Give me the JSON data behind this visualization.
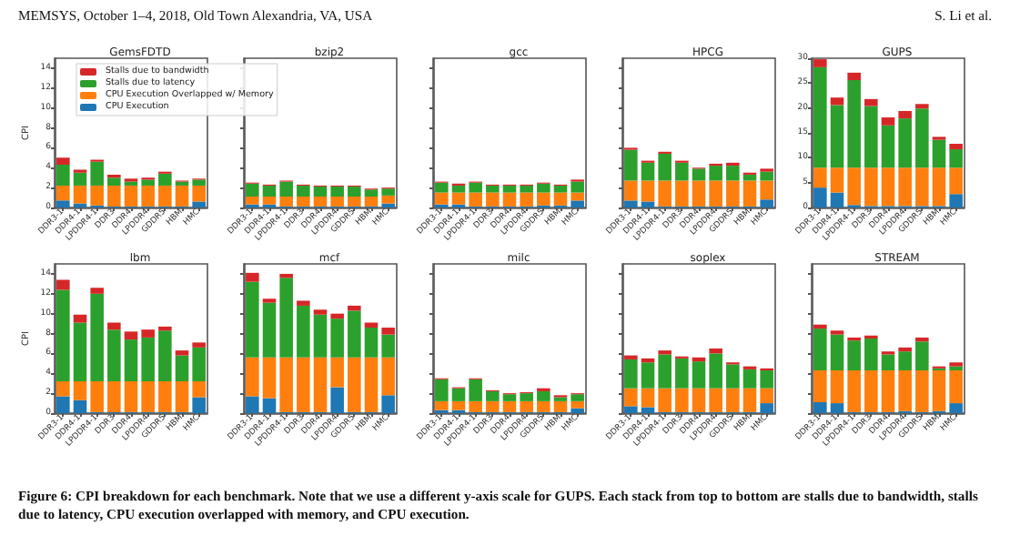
{
  "chart_data": [
    {
      "type": "bar",
      "title": "GemsFDTD",
      "ylabel": "CPI",
      "stacked": true,
      "legend": "top",
      "ylim": [
        0,
        15
      ],
      "yticks": [
        0,
        2,
        4,
        6,
        8,
        10,
        12,
        14
      ],
      "annotations": [
        "MEMSYS, October 1–4, 2018, Old Town Alexandria, VA, USA",
        "S. Li et al.",
        "Figure 6: CPI breakdown for each benchmark. Note that we use a different y-axis scale for GUPS. Each stack from top to bottom are stalls due to bandwidth, stalls due to latency, CPU execution overlapped with memory, and CPU execution."
      ],
      "categories": [
        "DDR3-1",
        "DDR4-1",
        "LPDDR4-1",
        "DDR3",
        "DDR4",
        "LPDDR4",
        "GDDR5",
        "HBM",
        "HMC"
      ],
      "series": [
        {
          "name": "CPU Execution",
          "color": "#1f77b4",
          "values": [
            0.7,
            0.4,
            0.2,
            0.1,
            0.1,
            0.1,
            0.1,
            0.1,
            0.6
          ]
        },
        {
          "name": "CPU Execution Overlapped w/ Memory",
          "color": "#ff7f0e",
          "values": [
            1.5,
            1.8,
            2.0,
            2.1,
            2.1,
            2.1,
            2.1,
            2.1,
            1.6
          ]
        },
        {
          "name": "Stalls due to latency",
          "color": "#2ca02c",
          "values": [
            2.1,
            1.3,
            2.4,
            0.8,
            0.4,
            0.6,
            1.2,
            0.4,
            0.6
          ]
        },
        {
          "name": "Stalls due to bandwidth",
          "color": "#d62728",
          "values": [
            0.7,
            0.3,
            0.2,
            0.3,
            0.3,
            0.2,
            0.2,
            0.1,
            0.1
          ]
        }
      ]
    },
    {
      "type": "bar",
      "title": "bzip2",
      "stacked": true,
      "tick_labels": "x",
      "ylim": [
        0,
        15
      ],
      "yticks": [
        0,
        2,
        4,
        6,
        8,
        10,
        12,
        14
      ],
      "categories": [
        "DDR3-1",
        "DDR4-1",
        "LPDDR4-1",
        "DDR3",
        "DDR4",
        "LPDDR4",
        "GDDR5",
        "HBM",
        "HMC"
      ],
      "series": [
        {
          "color": "#1f77b4",
          "values": [
            0.3,
            0.3,
            0.1,
            0.1,
            0.1,
            0.1,
            0.1,
            0.1,
            0.4
          ]
        },
        {
          "color": "#ff7f0e",
          "values": [
            0.8,
            0.8,
            1.0,
            1.0,
            1.0,
            1.0,
            1.0,
            1.0,
            0.8
          ]
        },
        {
          "color": "#2ca02c",
          "values": [
            1.3,
            1.1,
            1.5,
            1.1,
            1.0,
            1.0,
            1.0,
            0.7,
            0.7
          ]
        },
        {
          "color": "#d62728",
          "values": [
            0.1,
            0.1,
            0.1,
            0.1,
            0.1,
            0.1,
            0.1,
            0.1,
            0.1
          ]
        }
      ]
    },
    {
      "type": "bar",
      "title": "gcc",
      "stacked": true,
      "tick_labels": "x",
      "ylim": [
        0,
        15
      ],
      "yticks": [
        0,
        2,
        4,
        6,
        8,
        10,
        12,
        14
      ],
      "categories": [
        "DDR3-1",
        "DDR4-1",
        "LPDDR4-1",
        "DDR3",
        "DDR4",
        "LPDDR4",
        "GDDR5",
        "HBM",
        "HMC"
      ],
      "series": [
        {
          "color": "#1f77b4",
          "values": [
            0.3,
            0.3,
            0.1,
            0.1,
            0.1,
            0.1,
            0.2,
            0.2,
            0.7
          ]
        },
        {
          "color": "#ff7f0e",
          "values": [
            1.2,
            1.2,
            1.4,
            1.4,
            1.4,
            1.4,
            1.3,
            1.3,
            0.8
          ]
        },
        {
          "color": "#2ca02c",
          "values": [
            1.0,
            0.7,
            1.0,
            0.7,
            0.7,
            0.7,
            0.9,
            0.7,
            1.1
          ]
        },
        {
          "color": "#d62728",
          "values": [
            0.1,
            0.2,
            0.1,
            0.1,
            0.1,
            0.1,
            0.1,
            0.1,
            0.2
          ]
        }
      ]
    },
    {
      "type": "bar",
      "title": "HPCG",
      "stacked": true,
      "tick_labels": "x",
      "ylim": [
        0,
        15
      ],
      "yticks": [
        0,
        2,
        4,
        6,
        8,
        10,
        12,
        14
      ],
      "categories": [
        "DDR3-1",
        "DDR4-1",
        "LPDDR4-1",
        "DDR3",
        "DDR4",
        "LPDDR4",
        "GDDR5",
        "HBM",
        "HMC"
      ],
      "series": [
        {
          "color": "#1f77b4",
          "values": [
            0.7,
            0.6,
            0.1,
            0.1,
            0.1,
            0.1,
            0.1,
            0.1,
            0.8
          ]
        },
        {
          "color": "#ff7f0e",
          "values": [
            2.0,
            2.1,
            2.6,
            2.6,
            2.6,
            2.6,
            2.6,
            2.6,
            1.9
          ]
        },
        {
          "color": "#2ca02c",
          "values": [
            3.1,
            1.8,
            2.7,
            1.8,
            1.2,
            1.5,
            1.5,
            0.6,
            0.9
          ]
        },
        {
          "color": "#d62728",
          "values": [
            0.2,
            0.2,
            0.2,
            0.2,
            0.1,
            0.2,
            0.3,
            0.2,
            0.3
          ]
        }
      ]
    },
    {
      "type": "bar",
      "title": "GUPS",
      "stacked": true,
      "ylim": [
        0,
        30
      ],
      "yticks": [
        0,
        5,
        10,
        15,
        20,
        25,
        30
      ],
      "categories": [
        "DDR3-1",
        "DDR4-1",
        "LPDDR4-1",
        "DDR3",
        "DDR4",
        "LPDDR4",
        "GDDR5",
        "HBM",
        "HMC"
      ],
      "series": [
        {
          "color": "#1f77b4",
          "values": [
            4.0,
            3.0,
            0.5,
            0.3,
            0.3,
            0.3,
            0.3,
            0.3,
            2.7
          ]
        },
        {
          "color": "#ff7f0e",
          "values": [
            4.0,
            5.0,
            7.5,
            7.7,
            7.7,
            7.7,
            7.7,
            7.7,
            5.3
          ]
        },
        {
          "color": "#2ca02c",
          "values": [
            20.2,
            12.6,
            17.6,
            12.4,
            8.5,
            9.9,
            11.9,
            5.6,
            3.7
          ]
        },
        {
          "color": "#d62728",
          "values": [
            1.6,
            1.5,
            1.5,
            1.4,
            1.6,
            1.5,
            0.9,
            0.6,
            1.1
          ]
        }
      ]
    },
    {
      "type": "bar",
      "title": "lbm",
      "ylabel": "CPI",
      "stacked": true,
      "ylim": [
        0,
        15
      ],
      "yticks": [
        0,
        2,
        4,
        6,
        8,
        10,
        12,
        14
      ],
      "categories": [
        "DDR3-1",
        "DDR4-1",
        "LPDDR4-1",
        "DDR3",
        "DDR4",
        "LPDDR4",
        "GDDR5",
        "HBM",
        "HMC"
      ],
      "series": [
        {
          "color": "#1f77b4",
          "values": [
            1.7,
            1.3,
            0.1,
            0.1,
            0.1,
            0.1,
            0.1,
            0.1,
            1.6
          ]
        },
        {
          "color": "#ff7f0e",
          "values": [
            1.5,
            1.9,
            3.1,
            3.1,
            3.1,
            3.1,
            3.1,
            3.1,
            1.6
          ]
        },
        {
          "color": "#2ca02c",
          "values": [
            9.2,
            5.9,
            8.8,
            5.2,
            4.2,
            4.4,
            5.1,
            2.6,
            3.4
          ]
        },
        {
          "color": "#d62728",
          "values": [
            1.0,
            0.8,
            0.6,
            0.7,
            0.8,
            0.8,
            0.4,
            0.5,
            0.5
          ]
        }
      ]
    },
    {
      "type": "bar",
      "title": "mcf",
      "stacked": true,
      "tick_labels": "x",
      "ylim": [
        0,
        15
      ],
      "yticks": [
        0,
        2,
        4,
        6,
        8,
        10,
        12,
        14
      ],
      "categories": [
        "DDR3-1",
        "DDR4-1",
        "LPDDR4-1",
        "DDR3",
        "DDR4",
        "LPDDR4",
        "GDDR5",
        "HBM",
        "HMC"
      ],
      "series": [
        {
          "color": "#1f77b4",
          "values": [
            1.7,
            1.5,
            0.1,
            0.1,
            0.1,
            2.6,
            0.1,
            0.1,
            1.8
          ]
        },
        {
          "color": "#ff7f0e",
          "values": [
            3.9,
            4.1,
            5.5,
            5.5,
            5.5,
            3.0,
            5.5,
            5.5,
            3.8
          ]
        },
        {
          "color": "#2ca02c",
          "values": [
            7.6,
            5.5,
            8.0,
            5.2,
            4.3,
            3.9,
            4.7,
            3.0,
            2.3
          ]
        },
        {
          "color": "#d62728",
          "values": [
            0.9,
            0.4,
            0.4,
            0.5,
            0.5,
            0.5,
            0.5,
            0.5,
            0.7
          ]
        }
      ]
    },
    {
      "type": "bar",
      "title": "milc",
      "stacked": true,
      "tick_labels": "x",
      "ylim": [
        0,
        15
      ],
      "yticks": [
        0,
        2,
        4,
        6,
        8,
        10,
        12,
        14
      ],
      "categories": [
        "DDR3-1",
        "DDR4-1",
        "LPDDR4-1",
        "DDR3",
        "DDR4",
        "LPDDR4",
        "GDDR5",
        "HBM",
        "HMC"
      ],
      "series": [
        {
          "color": "#1f77b4",
          "values": [
            0.3,
            0.3,
            0.1,
            0.1,
            0.1,
            0.1,
            0.1,
            0.1,
            0.5
          ]
        },
        {
          "color": "#ff7f0e",
          "values": [
            0.9,
            0.9,
            1.1,
            1.1,
            1.1,
            1.1,
            1.1,
            1.1,
            0.7
          ]
        },
        {
          "color": "#2ca02c",
          "values": [
            2.2,
            1.3,
            2.2,
            1.0,
            0.7,
            0.8,
            1.0,
            0.4,
            0.7
          ]
        },
        {
          "color": "#d62728",
          "values": [
            0.1,
            0.1,
            0.1,
            0.1,
            0.1,
            0.1,
            0.3,
            0.2,
            0.1
          ]
        }
      ]
    },
    {
      "type": "bar",
      "title": "soplex",
      "stacked": true,
      "tick_labels": "x",
      "ylim": [
        0,
        15
      ],
      "yticks": [
        0,
        2,
        4,
        6,
        8,
        10,
        12,
        14
      ],
      "categories": [
        "DDR3-1",
        "DDR4-1",
        "LPDDR4-1",
        "DDR3",
        "DDR4",
        "LPDDR4",
        "GDDR5",
        "HBM",
        "HMC"
      ],
      "series": [
        {
          "color": "#1f77b4",
          "values": [
            0.7,
            0.6,
            0.1,
            0.1,
            0.1,
            0.1,
            0.1,
            0.1,
            1.0
          ]
        },
        {
          "color": "#ff7f0e",
          "values": [
            1.8,
            1.9,
            2.4,
            2.4,
            2.4,
            2.4,
            2.4,
            2.4,
            1.5
          ]
        },
        {
          "color": "#2ca02c",
          "values": [
            2.9,
            2.6,
            3.4,
            3.0,
            2.7,
            3.5,
            2.4,
            1.9,
            1.8
          ]
        },
        {
          "color": "#d62728",
          "values": [
            0.4,
            0.4,
            0.4,
            0.2,
            0.4,
            0.5,
            0.2,
            0.3,
            0.2
          ]
        }
      ]
    },
    {
      "type": "bar",
      "title": "STREAM",
      "stacked": true,
      "tick_labels": "x",
      "ylim": [
        0,
        15
      ],
      "yticks": [
        0,
        2,
        4,
        6,
        8,
        10,
        12,
        14
      ],
      "categories": [
        "DDR3-1",
        "DDR4-1",
        "LPDDR4-1",
        "DDR3",
        "DDR4",
        "LPDDR4",
        "GDDR5",
        "HBM",
        "HMC"
      ],
      "series": [
        {
          "color": "#1f77b4",
          "values": [
            1.1,
            1.0,
            0.1,
            0.1,
            0.1,
            0.2,
            0.1,
            0.2,
            1.0
          ]
        },
        {
          "color": "#ff7f0e",
          "values": [
            3.2,
            3.3,
            4.2,
            4.2,
            4.2,
            4.1,
            4.2,
            4.1,
            3.3
          ]
        },
        {
          "color": "#2ca02c",
          "values": [
            4.2,
            3.6,
            3.0,
            3.2,
            1.6,
            1.9,
            2.9,
            0.2,
            0.4
          ]
        },
        {
          "color": "#d62728",
          "values": [
            0.4,
            0.4,
            0.3,
            0.3,
            0.3,
            0.4,
            0.4,
            0.2,
            0.4
          ]
        }
      ]
    }
  ]
}
